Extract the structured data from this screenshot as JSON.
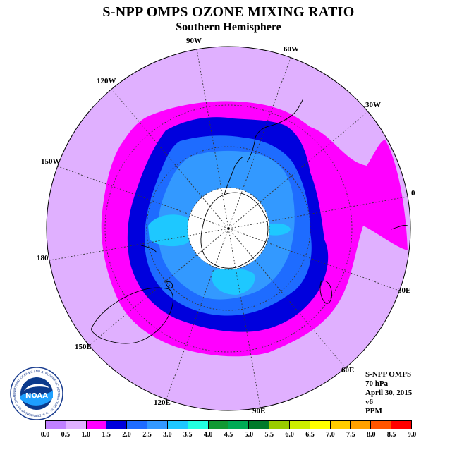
{
  "title": "S-NPP OMPS OZONE MIXING RATIO",
  "subtitle": "Southern Hemisphere",
  "longitude_labels": [
    "90W",
    "60W",
    "30W",
    "0",
    "30E",
    "60E",
    "90E",
    "120E",
    "150E",
    "180",
    "150W",
    "120W"
  ],
  "info": {
    "instrument": "S-NPP OMPS",
    "level": "70 hPa",
    "date": "April 30, 2015",
    "version": "v6",
    "units": "PPM"
  },
  "logo": {
    "name": "NOAA",
    "ring_text": "NATIONAL OCEANIC AND ATMOSPHERIC ADMINISTRATION · U.S. DEPARTMENT OF COMMERCE"
  },
  "legend": {
    "ticks": [
      "0.0",
      "0.5",
      "1.0",
      "1.5",
      "2.0",
      "2.5",
      "3.0",
      "3.5",
      "4.0",
      "4.5",
      "5.0",
      "5.5",
      "6.0",
      "6.5",
      "7.0",
      "7.5",
      "8.0",
      "8.5",
      "9.0"
    ],
    "colors": [
      "#c080ff",
      "#e0b0ff",
      "#ff00ff",
      "#0000dd",
      "#1e6cff",
      "#3399ff",
      "#1ec8ff",
      "#22ffe0",
      "#119933",
      "#00aa55",
      "#007a2a",
      "#99cc00",
      "#ccee00",
      "#ffff00",
      "#ffcc00",
      "#ffa000",
      "#ff5500",
      "#ff0000",
      "#8b5a3a"
    ]
  },
  "map_colors": {
    "outer": "#e0b0ff",
    "ring_1_0": "#ff00ff",
    "ring_1_5": "#0000dd",
    "ring_2_0": "#1e6cff",
    "ring_2_5": "#3399ff",
    "ring_3_0": "#1ec8ff",
    "pole_mask": "#ffffff"
  }
}
